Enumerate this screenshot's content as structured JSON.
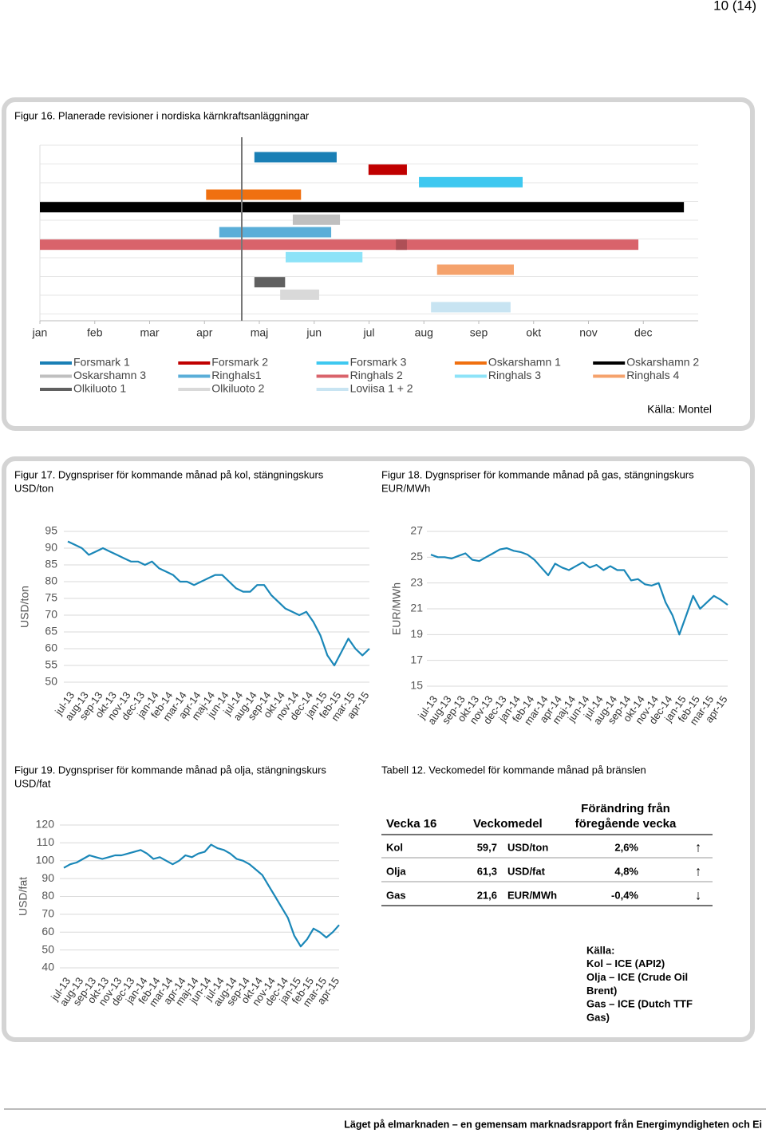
{
  "page_number": "10 (14)",
  "footer": "Läget på elmarknaden – en gemensam marknadsrapport från Energimyndigheten och Ei",
  "chart_data": [
    {
      "type": "gantt",
      "title": "Figur 16. Planerade revisioner i nordiska kärnkraftsanläggningar",
      "xlim": [
        0,
        12
      ],
      "xticks": [
        {
          "value": 0,
          "label": "jan"
        },
        {
          "value": 1,
          "label": "feb"
        },
        {
          "value": 2,
          "label": "mar"
        },
        {
          "value": 3,
          "label": "apr"
        },
        {
          "value": 4,
          "label": "maj"
        },
        {
          "value": 5,
          "label": "jun"
        },
        {
          "value": 6,
          "label": "jul"
        },
        {
          "value": 7,
          "label": "aug"
        },
        {
          "value": 8,
          "label": "sep"
        },
        {
          "value": 9,
          "label": "okt"
        },
        {
          "value": 10,
          "label": "nov"
        },
        {
          "value": 11,
          "label": "dec"
        }
      ],
      "marker_x": 3.68,
      "series": [
        {
          "name": "Forsmark 1",
          "color": "#1a7fb5",
          "segments": [
            [
              3.91,
              5.41
            ]
          ]
        },
        {
          "name": "Forsmark 2",
          "color": "#c00000",
          "segments": [
            [
              5.99,
              6.69
            ]
          ]
        },
        {
          "name": "Forsmark 3",
          "color": "#3ec8f0",
          "segments": [
            [
              6.91,
              8.8
            ]
          ]
        },
        {
          "name": "Oskarshamn 1",
          "color": "#f07010",
          "segments": [
            [
              3.03,
              4.76
            ]
          ]
        },
        {
          "name": "Oskarshamn 2",
          "color": "#000000",
          "segments": [
            [
              0,
              11.74
            ]
          ]
        },
        {
          "name": "Oskarshamn 3",
          "color": "#bfbfbf",
          "segments": [
            [
              4.61,
              5.47
            ]
          ]
        },
        {
          "name": "Ringhals1",
          "color": "#5aaed8",
          "segments": [
            [
              3.27,
              5.31
            ]
          ]
        },
        {
          "name": "Ringhals 2",
          "color": "#d9636b",
          "segments": [
            [
              0,
              10.91
            ],
            [
              6.49,
              6.69
            ]
          ]
        },
        {
          "name": "Ringhals 3",
          "color": "#8de3f8",
          "segments": [
            [
              4.48,
              5.88
            ]
          ]
        },
        {
          "name": "Ringhals 4",
          "color": "#f5a26c",
          "segments": [
            [
              7.24,
              8.64
            ]
          ]
        },
        {
          "name": "Olkiluoto 1",
          "color": "#606060",
          "segments": [
            [
              3.91,
              4.47
            ]
          ]
        },
        {
          "name": "Olkiluoto 2",
          "color": "#d9d9d9",
          "segments": [
            [
              4.38,
              5.09
            ]
          ]
        },
        {
          "name": "Loviisa 1 + 2",
          "color": "#c8e4f2",
          "segments": [
            [
              7.13,
              8.58
            ]
          ]
        }
      ],
      "source": "Källa: Montel"
    },
    {
      "type": "line",
      "title": "Figur 17. Dygnspriser för kommande månad på kol, stängningskurs",
      "subtitle": "USD/ton",
      "ylabel": "USD/ton",
      "categories": [
        "jul-13",
        null,
        "aug-13",
        null,
        "sep-13",
        null,
        "okt-13",
        null,
        "nov-13",
        null,
        "dec-13",
        null,
        "jan-14",
        null,
        "feb-14",
        null,
        "mar-14",
        null,
        "apr-14",
        null,
        "maj-14",
        null,
        "jun-14",
        null,
        "jul-14",
        null,
        "aug-14",
        null,
        "sep-14",
        null,
        "okt-14",
        null,
        "nov-14",
        null,
        "dec-14",
        null,
        "jan-15",
        null,
        "feb-15",
        null,
        "mar-15",
        null,
        "apr-15",
        null
      ],
      "values": [
        92,
        91,
        90,
        88,
        89,
        90,
        89,
        88,
        87,
        86,
        86,
        85,
        86,
        84,
        83,
        82,
        80,
        80,
        79,
        80,
        81,
        82,
        82,
        80,
        78,
        77,
        77,
        79,
        79,
        76,
        74,
        72,
        71,
        70,
        71,
        68,
        64,
        58,
        55,
        59,
        63,
        60,
        58,
        60
      ],
      "color": "#1a87b8",
      "ylim": [
        50,
        95
      ],
      "yticks": [
        50,
        55,
        60,
        65,
        70,
        75,
        80,
        85,
        90,
        95
      ],
      "grid": true
    },
    {
      "type": "line",
      "title": "Figur 18. Dygnspriser för kommande månad på gas, stängningskurs",
      "subtitle": "EUR/MWh",
      "ylabel": "EUR/MWh",
      "categories": [
        "jul-13",
        null,
        "aug-13",
        null,
        "sep-13",
        null,
        "okt-13",
        null,
        "nov-13",
        null,
        "dec-13",
        null,
        "jan-14",
        null,
        "feb-14",
        null,
        "mar-14",
        null,
        "apr-14",
        null,
        "maj-14",
        null,
        "jun-14",
        null,
        "jul-14",
        null,
        "aug-14",
        null,
        "sep-14",
        null,
        "okt-14",
        null,
        "nov-14",
        null,
        "dec-14",
        null,
        "jan-15",
        null,
        "feb-15",
        null,
        "mar-15",
        null,
        "apr-15",
        null
      ],
      "values": [
        25.2,
        25.0,
        25.0,
        24.9,
        25.1,
        25.3,
        24.8,
        24.7,
        25.0,
        25.3,
        25.6,
        25.7,
        25.5,
        25.4,
        25.2,
        24.8,
        24.2,
        23.6,
        24.5,
        24.2,
        24.0,
        24.3,
        24.6,
        24.2,
        24.4,
        24.0,
        24.3,
        24.0,
        24.0,
        23.2,
        23.3,
        22.9,
        22.8,
        23.0,
        21.5,
        20.5,
        19.0,
        20.5,
        22.0,
        21.0,
        21.5,
        22.0,
        21.7,
        21.3
      ],
      "color": "#1a87b8",
      "ylim": [
        15,
        27
      ],
      "yticks": [
        15,
        17,
        19,
        21,
        23,
        25,
        27
      ],
      "grid": true
    },
    {
      "type": "line",
      "title": "Figur 19. Dygnspriser för kommande månad på olja, stängningskurs",
      "subtitle": "USD/fat",
      "ylabel": "USD/fat",
      "categories": [
        "jul-13",
        null,
        "aug-13",
        null,
        "sep-13",
        null,
        "okt-13",
        null,
        "nov-13",
        null,
        "dec-13",
        null,
        "jan-14",
        null,
        "feb-14",
        null,
        "mar-14",
        null,
        "apr-14",
        null,
        "maj-14",
        null,
        "jun-14",
        null,
        "jul-14",
        null,
        "aug-14",
        null,
        "sep-14",
        null,
        "okt-14",
        null,
        "nov-14",
        null,
        "dec-14",
        null,
        "jan-15",
        null,
        "feb-15",
        null,
        "mar-15",
        null,
        "apr-15",
        null
      ],
      "values": [
        96,
        98,
        99,
        101,
        103,
        102,
        101,
        102,
        103,
        103,
        104,
        105,
        106,
        104,
        101,
        102,
        100,
        98,
        100,
        103,
        102,
        104,
        105,
        109,
        107,
        106,
        104,
        101,
        100,
        98,
        95,
        92,
        86,
        80,
        74,
        68,
        58,
        52,
        56,
        62,
        60,
        57,
        60,
        64
      ],
      "color": "#1a87b8",
      "ylim": [
        40,
        120
      ],
      "yticks": [
        40,
        50,
        60,
        70,
        80,
        90,
        100,
        110,
        120
      ],
      "grid": true
    }
  ],
  "table": {
    "title": "Tabell 12. Veckomedel för kommande månad på bränslen",
    "header": {
      "week": "Vecka 16",
      "avg": "Veckomedel",
      "change": [
        "Förändring från",
        "föregående vecka"
      ]
    },
    "rows": [
      [
        "Kol",
        "59,7",
        "USD/ton",
        "2,6%",
        "↑"
      ],
      [
        "Olja",
        "61,3",
        "USD/fat",
        "4,8%",
        "↑"
      ],
      [
        "Gas",
        "21,6",
        "EUR/MWh",
        "-0,4%",
        "↓"
      ]
    ],
    "source": [
      "Källa:",
      "Kol – ICE (API2)",
      "Olja – ICE (Crude Oil",
      "Brent)",
      "Gas – ICE (Dutch TTF",
      "Gas)"
    ]
  }
}
